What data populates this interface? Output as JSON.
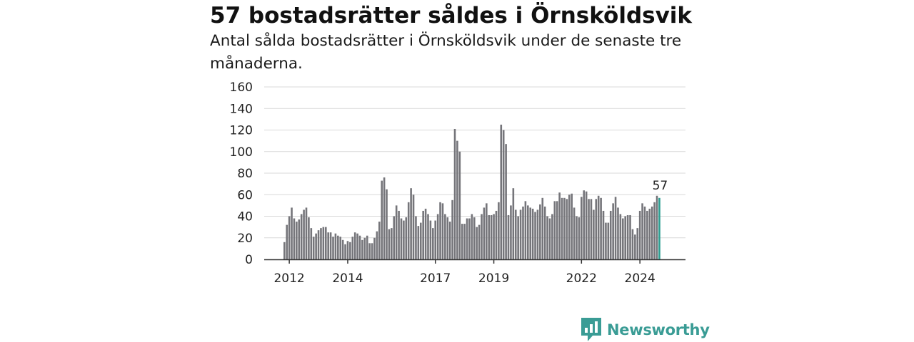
{
  "header": {
    "title": "57 bostadsrätter såldes i Örnsköldsvik",
    "subtitle": "Antal sålda bostadsrätter i Örnsköldsvik under de senaste tre månaderna."
  },
  "brand": {
    "name": "Newsworthy",
    "icon": "newsworthy-logo-icon"
  },
  "colors": {
    "bar": "#75757a",
    "highlight": "#2a9d8f",
    "grid": "#d9d9d9",
    "axis": "#333333",
    "brand": "#3a9c95"
  },
  "chart_data": {
    "type": "bar",
    "title": "57 bostadsrätter såldes i Örnsköldsvik",
    "subtitle": "Antal sålda bostadsrätter i Örnsköldsvik under de senaste tre månaderna.",
    "xlabel": "",
    "ylabel": "",
    "ylim": [
      0,
      160
    ],
    "yticks": [
      0,
      20,
      40,
      60,
      80,
      100,
      120,
      140,
      160
    ],
    "xticks": [
      {
        "label": "2012",
        "at": "2012-01"
      },
      {
        "label": "2014",
        "at": "2014-01"
      },
      {
        "label": "2017",
        "at": "2017-01"
      },
      {
        "label": "2019",
        "at": "2019-01"
      },
      {
        "label": "2022",
        "at": "2022-01"
      },
      {
        "label": "2024",
        "at": "2024-01"
      }
    ],
    "grid": true,
    "legend": "none",
    "x_start": "2011-11",
    "x_frequency": "monthly",
    "values": [
      16,
      32,
      40,
      48,
      38,
      35,
      37,
      42,
      46,
      48,
      39,
      29,
      21,
      24,
      27,
      29,
      30,
      30,
      25,
      25,
      21,
      24,
      22,
      21,
      18,
      14,
      17,
      16,
      21,
      25,
      24,
      22,
      18,
      20,
      22,
      15,
      15,
      20,
      26,
      35,
      73,
      76,
      65,
      28,
      29,
      40,
      50,
      45,
      38,
      36,
      39,
      53,
      66,
      60,
      40,
      31,
      34,
      45,
      47,
      42,
      36,
      29,
      36,
      42,
      53,
      52,
      42,
      39,
      35,
      55,
      121,
      110,
      100,
      33,
      33,
      38,
      38,
      42,
      39,
      30,
      32,
      42,
      48,
      52,
      41,
      41,
      42,
      45,
      53,
      125,
      120,
      107,
      41,
      50,
      66,
      46,
      40,
      46,
      49,
      54,
      50,
      48,
      47,
      44,
      46,
      51,
      57,
      49,
      40,
      38,
      42,
      54,
      54,
      62,
      57,
      57,
      56,
      60,
      61,
      48,
      40,
      39,
      58,
      64,
      63,
      56,
      56,
      46,
      56,
      59,
      57,
      45,
      34,
      34,
      45,
      52,
      58,
      48,
      42,
      38,
      40,
      41,
      41,
      28,
      23,
      29,
      45,
      52,
      49,
      45,
      47,
      49,
      53,
      59,
      57
    ],
    "highlight_index": 154,
    "highlight_label": "57"
  }
}
